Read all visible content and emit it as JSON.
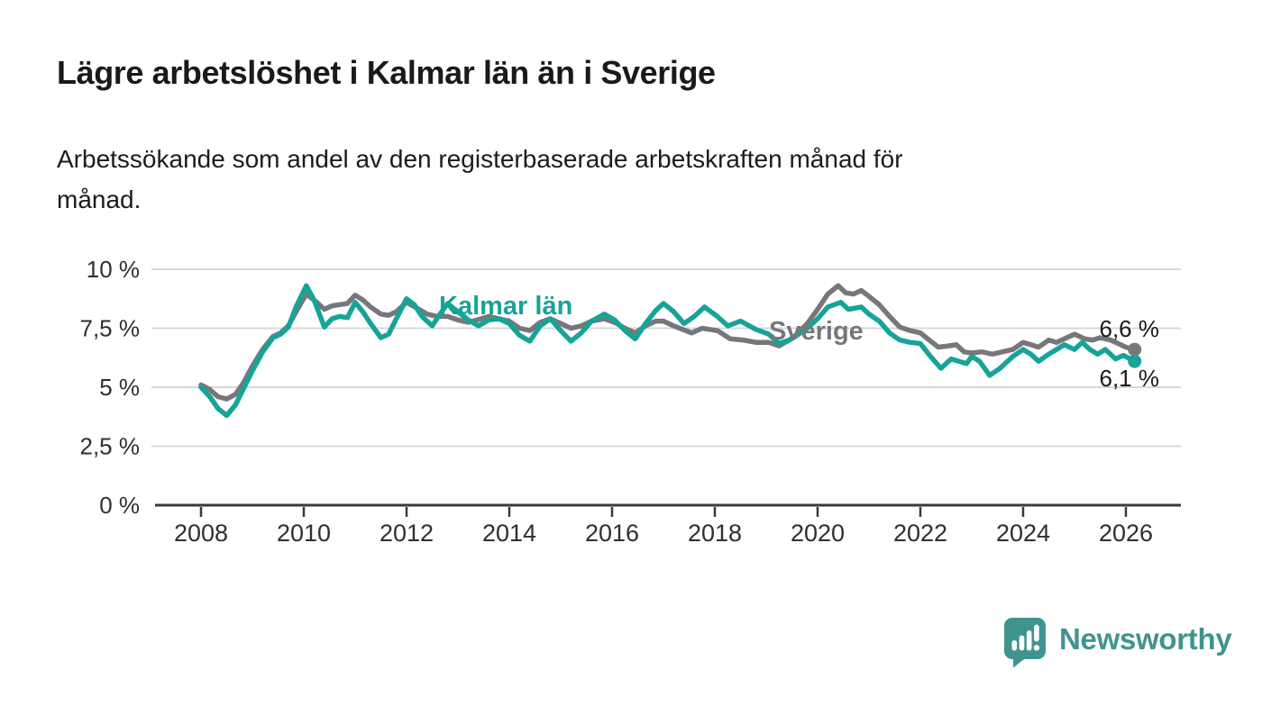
{
  "header": {
    "title": "Lägre arbetslöshet i Kalmar län än i Sverige",
    "subtitle_lines": [
      "Arbetssökande som andel av den registerbaserade arbetskraften månad för",
      "månad."
    ]
  },
  "colors": {
    "kalmar": "#17a398",
    "sverige": "#76777b",
    "grid": "#d8d8d8",
    "axis": "#3a3a3a",
    "tick_text": "#2f2f2f",
    "title_text": "#1a1a1a",
    "value_label_text": "#1a1a1a",
    "logo": "#3f948f",
    "background": "#ffffff"
  },
  "footer": {
    "brand": "Newsworthy",
    "logo_icon": "bar-chart-speech-bubble"
  },
  "chart_data": {
    "type": "line",
    "unit": "%",
    "grid": "horizontal-only",
    "legend": "inline-series-labels",
    "xlim": [
      2007.1,
      2027.1
    ],
    "ylim": [
      0,
      10
    ],
    "x_ticks": [
      2008,
      2010,
      2012,
      2014,
      2016,
      2018,
      2020,
      2022,
      2024,
      2026
    ],
    "x_tick_labels": [
      "2008",
      "2010",
      "2012",
      "2014",
      "2016",
      "2018",
      "2020",
      "2022",
      "2024",
      "2026"
    ],
    "y_ticks": [
      0,
      2.5,
      5,
      7.5,
      10
    ],
    "y_tick_labels": [
      "0 %",
      "2,5 %",
      "5 %",
      "7,5 %",
      "10 %"
    ],
    "series": [
      {
        "name": "Sverige",
        "color_key": "sverige",
        "end_label": "6,6 %",
        "end_value": 6.6,
        "points": [
          [
            2008.0,
            5.1
          ],
          [
            2008.17,
            4.9
          ],
          [
            2008.33,
            4.6
          ],
          [
            2008.5,
            4.5
          ],
          [
            2008.67,
            4.7
          ],
          [
            2008.83,
            5.2
          ],
          [
            2009.0,
            5.9
          ],
          [
            2009.2,
            6.6
          ],
          [
            2009.4,
            7.15
          ],
          [
            2009.55,
            7.3
          ],
          [
            2009.7,
            7.6
          ],
          [
            2009.85,
            8.2
          ],
          [
            2010.05,
            8.95
          ],
          [
            2010.25,
            8.6
          ],
          [
            2010.4,
            8.3
          ],
          [
            2010.55,
            8.45
          ],
          [
            2010.7,
            8.5
          ],
          [
            2010.85,
            8.55
          ],
          [
            2011.0,
            8.9
          ],
          [
            2011.15,
            8.7
          ],
          [
            2011.3,
            8.4
          ],
          [
            2011.5,
            8.1
          ],
          [
            2011.65,
            8.05
          ],
          [
            2011.8,
            8.2
          ],
          [
            2012.0,
            8.6
          ],
          [
            2012.2,
            8.35
          ],
          [
            2012.4,
            8.1
          ],
          [
            2012.6,
            8.0
          ],
          [
            2012.8,
            8.0
          ],
          [
            2013.0,
            7.85
          ],
          [
            2013.2,
            7.75
          ],
          [
            2013.45,
            7.9
          ],
          [
            2013.6,
            8.0
          ],
          [
            2013.8,
            7.9
          ],
          [
            2014.0,
            7.8
          ],
          [
            2014.2,
            7.5
          ],
          [
            2014.4,
            7.4
          ],
          [
            2014.6,
            7.75
          ],
          [
            2014.8,
            7.9
          ],
          [
            2015.0,
            7.7
          ],
          [
            2015.2,
            7.5
          ],
          [
            2015.4,
            7.6
          ],
          [
            2015.6,
            7.8
          ],
          [
            2015.85,
            7.9
          ],
          [
            2016.05,
            7.75
          ],
          [
            2016.25,
            7.5
          ],
          [
            2016.45,
            7.3
          ],
          [
            2016.65,
            7.6
          ],
          [
            2016.85,
            7.8
          ],
          [
            2017.0,
            7.8
          ],
          [
            2017.2,
            7.6
          ],
          [
            2017.55,
            7.3
          ],
          [
            2017.75,
            7.5
          ],
          [
            2017.9,
            7.45
          ],
          [
            2018.05,
            7.4
          ],
          [
            2018.3,
            7.05
          ],
          [
            2018.55,
            7.0
          ],
          [
            2018.8,
            6.9
          ],
          [
            2019.05,
            6.9
          ],
          [
            2019.25,
            6.75
          ],
          [
            2019.45,
            7.0
          ],
          [
            2019.6,
            7.25
          ],
          [
            2019.8,
            7.7
          ],
          [
            2020.0,
            8.3
          ],
          [
            2020.2,
            8.95
          ],
          [
            2020.4,
            9.3
          ],
          [
            2020.55,
            9.0
          ],
          [
            2020.7,
            8.95
          ],
          [
            2020.85,
            9.1
          ],
          [
            2021.0,
            8.85
          ],
          [
            2021.2,
            8.5
          ],
          [
            2021.4,
            8.0
          ],
          [
            2021.6,
            7.55
          ],
          [
            2021.8,
            7.4
          ],
          [
            2022.0,
            7.3
          ],
          [
            2022.2,
            6.95
          ],
          [
            2022.35,
            6.7
          ],
          [
            2022.55,
            6.75
          ],
          [
            2022.7,
            6.8
          ],
          [
            2022.85,
            6.5
          ],
          [
            2023.0,
            6.45
          ],
          [
            2023.2,
            6.5
          ],
          [
            2023.4,
            6.4
          ],
          [
            2023.6,
            6.5
          ],
          [
            2023.8,
            6.6
          ],
          [
            2024.0,
            6.9
          ],
          [
            2024.15,
            6.8
          ],
          [
            2024.3,
            6.7
          ],
          [
            2024.5,
            7.0
          ],
          [
            2024.65,
            6.9
          ],
          [
            2024.85,
            7.1
          ],
          [
            2025.0,
            7.25
          ],
          [
            2025.2,
            7.05
          ],
          [
            2025.35,
            7.0
          ],
          [
            2025.5,
            7.1
          ],
          [
            2025.7,
            7.0
          ],
          [
            2025.85,
            6.85
          ],
          [
            2026.0,
            6.7
          ],
          [
            2026.17,
            6.6
          ]
        ]
      },
      {
        "name": "Kalmar län",
        "color_key": "kalmar",
        "end_label": "6,1 %",
        "end_value": 6.1,
        "points": [
          [
            2008.0,
            5.0
          ],
          [
            2008.17,
            4.6
          ],
          [
            2008.33,
            4.1
          ],
          [
            2008.5,
            3.8
          ],
          [
            2008.67,
            4.25
          ],
          [
            2008.83,
            4.95
          ],
          [
            2009.0,
            5.7
          ],
          [
            2009.2,
            6.5
          ],
          [
            2009.4,
            7.1
          ],
          [
            2009.55,
            7.25
          ],
          [
            2009.7,
            7.55
          ],
          [
            2009.85,
            8.4
          ],
          [
            2010.05,
            9.3
          ],
          [
            2010.2,
            8.7
          ],
          [
            2010.4,
            7.55
          ],
          [
            2010.55,
            7.9
          ],
          [
            2010.7,
            8.0
          ],
          [
            2010.85,
            7.95
          ],
          [
            2011.0,
            8.6
          ],
          [
            2011.15,
            8.2
          ],
          [
            2011.3,
            7.7
          ],
          [
            2011.5,
            7.1
          ],
          [
            2011.65,
            7.25
          ],
          [
            2011.8,
            7.9
          ],
          [
            2012.0,
            8.75
          ],
          [
            2012.15,
            8.5
          ],
          [
            2012.3,
            8.0
          ],
          [
            2012.5,
            7.6
          ],
          [
            2012.65,
            8.1
          ],
          [
            2012.8,
            8.55
          ],
          [
            2013.0,
            8.2
          ],
          [
            2013.2,
            7.85
          ],
          [
            2013.4,
            7.6
          ],
          [
            2013.6,
            7.85
          ],
          [
            2013.8,
            7.9
          ],
          [
            2014.0,
            7.7
          ],
          [
            2014.2,
            7.2
          ],
          [
            2014.4,
            6.95
          ],
          [
            2014.6,
            7.6
          ],
          [
            2014.8,
            7.9
          ],
          [
            2015.0,
            7.4
          ],
          [
            2015.2,
            6.95
          ],
          [
            2015.4,
            7.3
          ],
          [
            2015.6,
            7.8
          ],
          [
            2015.85,
            8.1
          ],
          [
            2016.05,
            7.85
          ],
          [
            2016.25,
            7.4
          ],
          [
            2016.45,
            7.05
          ],
          [
            2016.65,
            7.7
          ],
          [
            2016.85,
            8.25
          ],
          [
            2017.0,
            8.55
          ],
          [
            2017.2,
            8.2
          ],
          [
            2017.4,
            7.7
          ],
          [
            2017.6,
            8.0
          ],
          [
            2017.8,
            8.4
          ],
          [
            2018.05,
            8.0
          ],
          [
            2018.25,
            7.6
          ],
          [
            2018.5,
            7.8
          ],
          [
            2018.8,
            7.45
          ],
          [
            2019.05,
            7.25
          ],
          [
            2019.25,
            6.85
          ],
          [
            2019.45,
            7.0
          ],
          [
            2019.6,
            7.2
          ],
          [
            2019.8,
            7.5
          ],
          [
            2020.0,
            7.9
          ],
          [
            2020.2,
            8.4
          ],
          [
            2020.45,
            8.6
          ],
          [
            2020.6,
            8.3
          ],
          [
            2020.85,
            8.4
          ],
          [
            2021.0,
            8.1
          ],
          [
            2021.2,
            7.8
          ],
          [
            2021.4,
            7.3
          ],
          [
            2021.6,
            7.0
          ],
          [
            2021.8,
            6.9
          ],
          [
            2022.0,
            6.85
          ],
          [
            2022.2,
            6.3
          ],
          [
            2022.4,
            5.8
          ],
          [
            2022.6,
            6.2
          ],
          [
            2022.75,
            6.1
          ],
          [
            2022.9,
            6.0
          ],
          [
            2023.0,
            6.3
          ],
          [
            2023.15,
            6.1
          ],
          [
            2023.35,
            5.5
          ],
          [
            2023.55,
            5.8
          ],
          [
            2023.8,
            6.3
          ],
          [
            2024.0,
            6.6
          ],
          [
            2024.15,
            6.4
          ],
          [
            2024.3,
            6.1
          ],
          [
            2024.5,
            6.4
          ],
          [
            2024.65,
            6.6
          ],
          [
            2024.8,
            6.8
          ],
          [
            2025.0,
            6.6
          ],
          [
            2025.15,
            6.9
          ],
          [
            2025.3,
            6.6
          ],
          [
            2025.45,
            6.4
          ],
          [
            2025.6,
            6.6
          ],
          [
            2025.8,
            6.2
          ],
          [
            2025.95,
            6.35
          ],
          [
            2026.17,
            6.1
          ]
        ]
      }
    ]
  }
}
